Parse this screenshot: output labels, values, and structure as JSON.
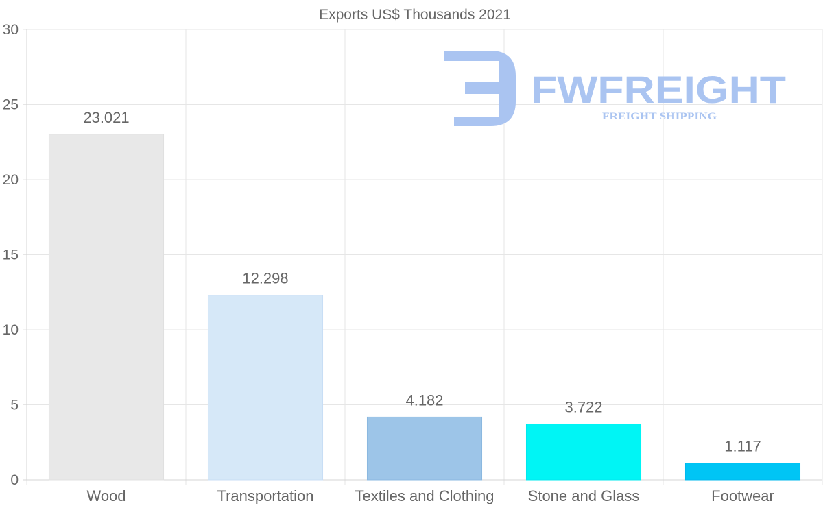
{
  "chart_data": {
    "type": "bar",
    "title": "Exports US$ Thousands 2021",
    "categories": [
      "Wood",
      "Transportation",
      "Textiles and Clothing",
      "Stone and Glass",
      "Footwear"
    ],
    "values": [
      23.021,
      12.298,
      4.182,
      3.722,
      1.117
    ],
    "value_labels": [
      "23.021",
      "12.298",
      "4.182",
      "3.722",
      "1.117"
    ],
    "bar_colors": [
      "#e8e8e8",
      "#d6e8f8",
      "#9dc5e8",
      "#00f5f5",
      "#00c5f5"
    ],
    "bar_border_colors": [
      "#e0e0e0",
      "#c8def5",
      "#8bb8e0",
      "#00e8ee",
      "#00b8ee"
    ],
    "ylim": [
      0,
      30
    ],
    "yticks": [
      0,
      5,
      10,
      15,
      20,
      25,
      30
    ],
    "xlabel": "",
    "ylabel": "",
    "grid": true,
    "legend": "none"
  },
  "watermark": {
    "brand": "FWFREIGHT",
    "tagline": "FREIGHT SHIPPING",
    "color": "#aac4f1"
  }
}
